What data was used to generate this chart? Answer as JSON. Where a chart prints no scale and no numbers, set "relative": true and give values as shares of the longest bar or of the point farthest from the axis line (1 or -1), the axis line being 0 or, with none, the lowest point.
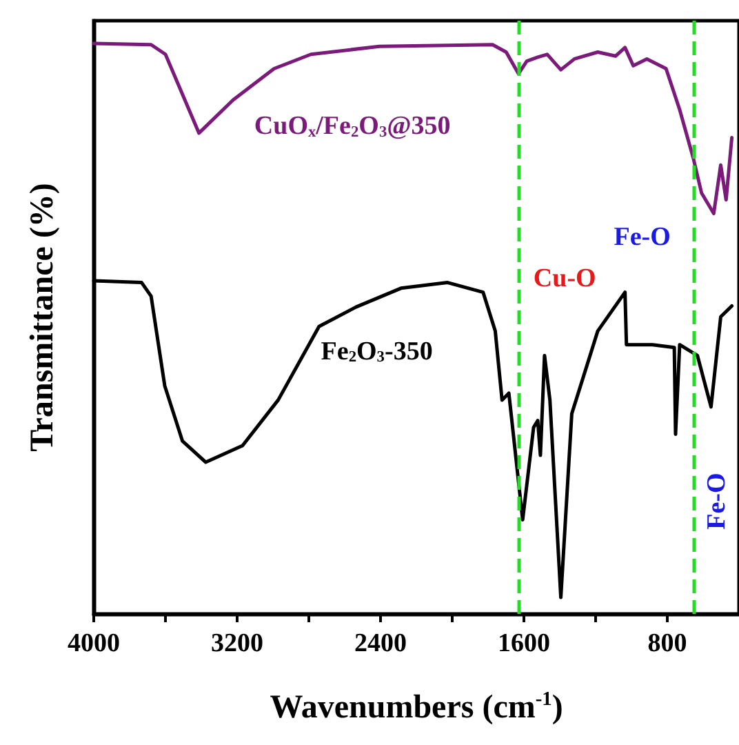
{
  "chart_data": {
    "type": "line",
    "relative": true,
    "xlabel": "Wavenumbers (cm$^{-1}$)",
    "ylabel": "Transmittance (%)",
    "xlim": [
      4000,
      400
    ],
    "xticks": [
      4000,
      {
        "value": 3600,
        "label": null
      },
      3200,
      {
        "value": 2800,
        "label": null
      },
      2400,
      {
        "value": 2000,
        "label": null
      },
      1600,
      {
        "value": 1200,
        "label": null
      },
      800
    ],
    "tick_labels": "x",
    "grid": false,
    "legend": false,
    "marker": "none",
    "line_style": "solid",
    "series": [
      {
        "name": "CuO$_{x}$/Fe$_{2}$O$_{3}$@350",
        "color": "#7b1a7b",
        "x": [
          4000,
          3680,
          3600,
          3413,
          3223,
          2994,
          2788,
          2407,
          1775,
          1699,
          1630,
          1584,
          1523,
          1470,
          1394,
          1318,
          1188,
          1089,
          1036,
          990,
          914,
          807,
          731,
          655,
          609,
          541,
          502,
          472,
          440
        ],
        "values": [
          1.0,
          0.998,
          0.981,
          0.843,
          0.901,
          0.956,
          0.981,
          0.995,
          0.998,
          0.985,
          0.947,
          0.969,
          0.976,
          0.981,
          0.954,
          0.973,
          0.985,
          0.978,
          0.993,
          0.961,
          0.973,
          0.956,
          0.884,
          0.799,
          0.738,
          0.702,
          0.787,
          0.726,
          0.835
        ]
      },
      {
        "name": "Fe$_{2}$O$_{3}$-350",
        "color": "#000000",
        "x": [
          4000,
          3733,
          3680,
          3604,
          3505,
          3375,
          3170,
          2971,
          2743,
          2537,
          2286,
          2026,
          1828,
          1760,
          1722,
          1684,
          1607,
          1546,
          1523,
          1508,
          1485,
          1455,
          1394,
          1333,
          1188,
          1036,
          1028,
          883,
          761,
          754,
          731,
          632,
          556,
          502,
          440
        ],
        "values": [
          0.584,
          0.581,
          0.557,
          0.4,
          0.303,
          0.266,
          0.295,
          0.375,
          0.504,
          0.538,
          0.571,
          0.581,
          0.564,
          0.496,
          0.375,
          0.387,
          0.165,
          0.327,
          0.339,
          0.278,
          0.453,
          0.375,
          0.029,
          0.351,
          0.496,
          0.564,
          0.472,
          0.472,
          0.467,
          0.315,
          0.472,
          0.453,
          0.363,
          0.521,
          0.54
        ]
      }
    ],
    "ref_lines": [
      {
        "axis": "x",
        "value": 1630,
        "color": "#22dd22",
        "line_style": "dashed"
      },
      {
        "axis": "x",
        "value": 650,
        "color": "#22dd22",
        "line_style": "dashed"
      }
    ],
    "annotations": [
      "Fe-O",
      "Cu-O",
      "Fe-O"
    ]
  }
}
